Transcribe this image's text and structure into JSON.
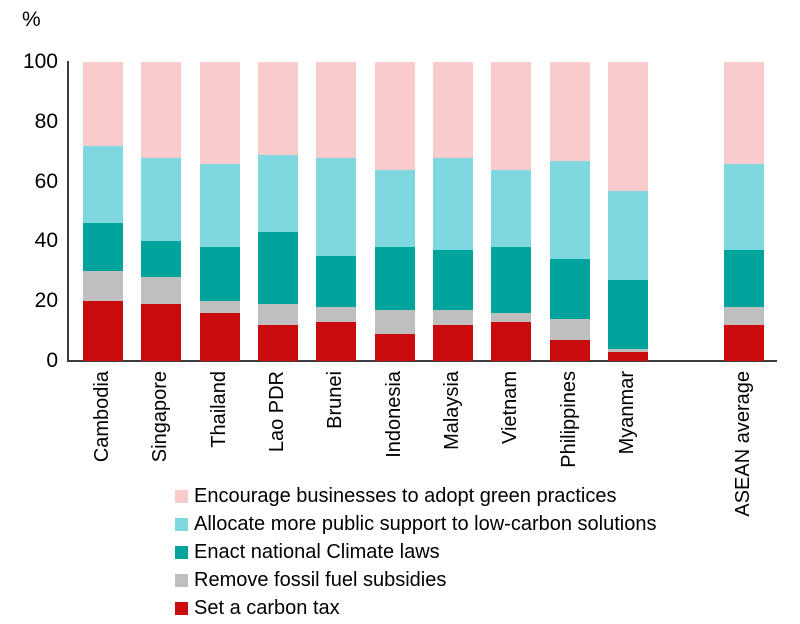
{
  "chart_data": {
    "type": "bar",
    "stacked": true,
    "orientation": "vertical",
    "ylabel": "%",
    "ylim": [
      0,
      100
    ],
    "yticks": [
      0,
      20,
      40,
      60,
      80,
      100
    ],
    "grid": false,
    "legend_position": "bottom",
    "note": "ASEAN average bar is separated from country bars by an empty slot",
    "categories": [
      "Cambodia",
      "Singapore",
      "Thailand",
      "Lao PDR",
      "Brunei",
      "Indonesia",
      "Malaysia",
      "Vietnam",
      "Philippines",
      "Myanmar",
      "ASEAN average"
    ],
    "series": [
      {
        "name": "Set a carbon tax",
        "color": "#C90B0D",
        "values": [
          20,
          19,
          16,
          12,
          13,
          9,
          12,
          13,
          7,
          3,
          12
        ]
      },
      {
        "name": "Remove fossil fuel subsidies",
        "color": "#BFBFBF",
        "values": [
          10,
          9,
          4,
          7,
          5,
          8,
          5,
          3,
          7,
          1,
          6
        ]
      },
      {
        "name": "Enact national Climate laws",
        "color": "#00A49C",
        "values": [
          16,
          12,
          18,
          24,
          17,
          21,
          20,
          22,
          20,
          23,
          19
        ]
      },
      {
        "name": "Allocate more public support to low-carbon solutions",
        "color": "#7FD8DF",
        "values": [
          26,
          28,
          28,
          26,
          33,
          26,
          31,
          26,
          33,
          30,
          29
        ]
      },
      {
        "name": "Encourage businesses to adopt green practices",
        "color": "#FACBCC",
        "values": [
          28,
          32,
          34,
          31,
          32,
          36,
          32,
          36,
          33,
          43,
          34
        ]
      }
    ],
    "legend_order_top_to_bottom": [
      "Encourage businesses to adopt green practices",
      "Allocate more public support to low-carbon solutions",
      "Enact national Climate laws",
      "Remove fossil fuel subsidies",
      "Set a carbon tax"
    ],
    "axis_color": "#3d3d3d",
    "text_color": "#000000"
  }
}
